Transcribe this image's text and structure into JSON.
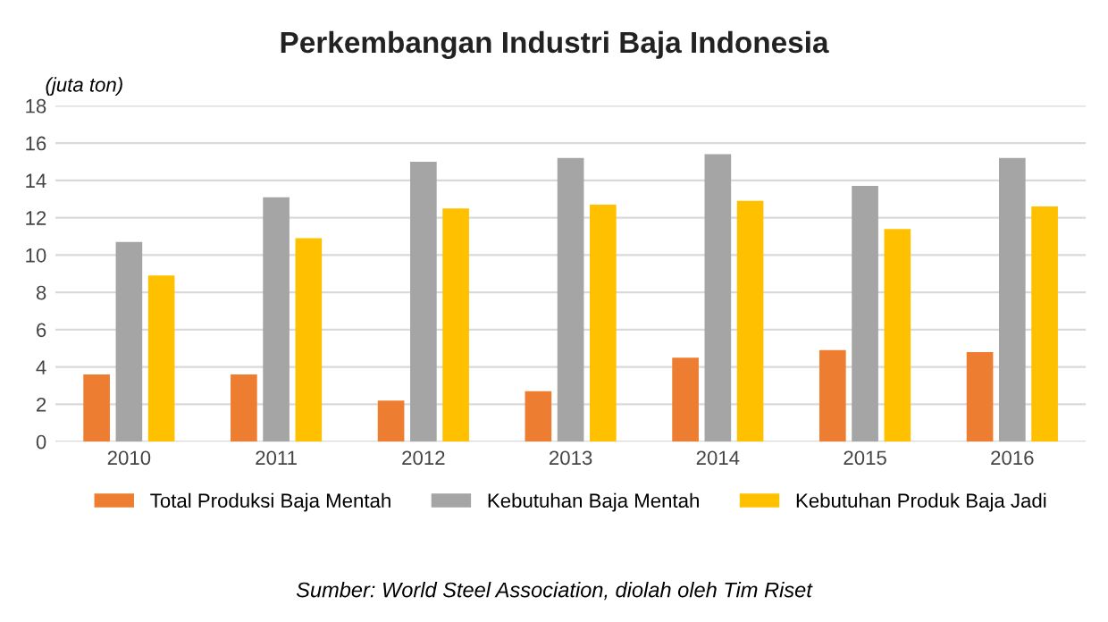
{
  "chart_data": {
    "type": "bar",
    "title": "Perkembangan Industri Baja Indonesia",
    "ylabel": "(juta ton)",
    "categories": [
      "2010",
      "2011",
      "2012",
      "2013",
      "2014",
      "2015",
      "2016"
    ],
    "series": [
      {
        "name": "Total Produksi Baja Mentah",
        "color": "#ed7d31",
        "values": [
          3.6,
          3.6,
          2.2,
          2.7,
          4.5,
          4.9,
          4.8
        ]
      },
      {
        "name": "Kebutuhan Baja Mentah",
        "color": "#a5a5a5",
        "values": [
          10.7,
          13.1,
          15.0,
          15.2,
          15.4,
          13.7,
          15.2
        ]
      },
      {
        "name": "Kebutuhan Produk Baja Jadi",
        "color": "#ffc000",
        "values": [
          8.9,
          10.9,
          12.5,
          12.7,
          12.9,
          11.4,
          12.6
        ]
      }
    ],
    "ylim": [
      0,
      18
    ],
    "yticks": [
      0,
      2,
      4,
      6,
      8,
      10,
      12,
      14,
      16,
      18
    ],
    "grid": "y",
    "legend": "bottom",
    "annotations": [
      "Sumber: World Steel Association, diolah oleh Tim Riset"
    ]
  }
}
